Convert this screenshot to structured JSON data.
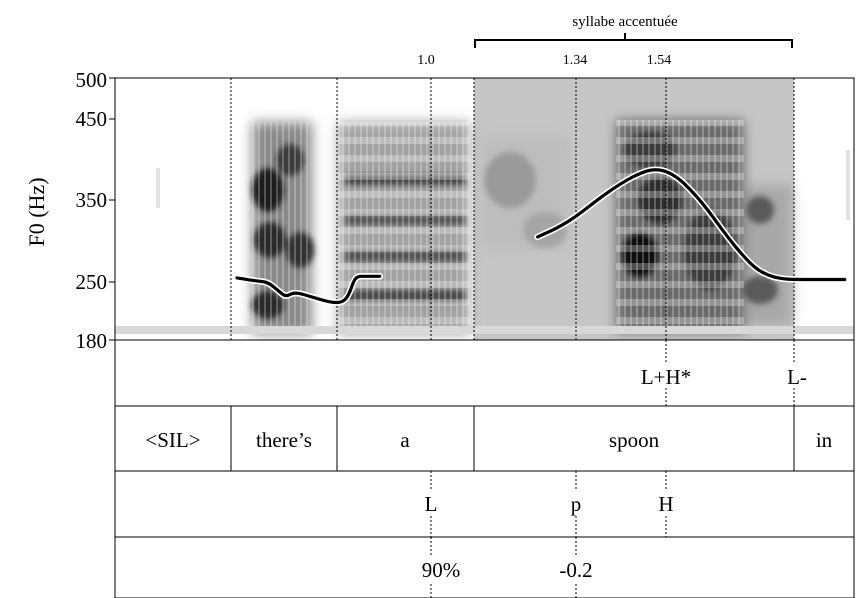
{
  "title": {
    "bracket_label": "syllabe accentuée"
  },
  "y_axis": {
    "label": "F0 (Hz)",
    "ticks": [
      "500",
      "450",
      "350",
      "250",
      "180"
    ]
  },
  "time_markers": [
    "1.0",
    "1.34",
    "1.54"
  ],
  "tiers": {
    "tones": [
      "L+H*",
      "L-"
    ],
    "words": [
      "<SIL>",
      "there’s",
      "a",
      "spoon",
      "in"
    ],
    "targets": [
      "L",
      "p",
      "H"
    ],
    "values": [
      "90%",
      "-0.2"
    ]
  },
  "colors": {
    "stressed_shading": "#c6c6c6",
    "f0_contour": "#000000",
    "contour_halo": "#ffffff",
    "grid": "#000000"
  },
  "chart_data": {
    "type": "line",
    "ylabel": "F0 (Hz)",
    "ylim": [
      180,
      500
    ],
    "series": [
      {
        "x": [
          0.545,
          0.58,
          0.6,
          0.62,
          0.645,
          0.66,
          0.68,
          0.72,
          0.76,
          0.78,
          0.79,
          0.8,
          0.81,
          0.82,
          0.83,
          0.84,
          0.85,
          0.86,
          0.88
        ],
        "values": [
          255,
          252,
          251,
          249,
          238,
          232,
          238,
          232,
          226,
          225,
          226,
          229,
          238,
          253,
          257,
          257,
          257,
          257,
          257
        ]
      },
      {
        "x": [
          1.25,
          1.28,
          1.31,
          1.34,
          1.37,
          1.4,
          1.43,
          1.46,
          1.49,
          1.52,
          1.55,
          1.58,
          1.61,
          1.64,
          1.67,
          1.7,
          1.73,
          1.76,
          1.79,
          1.82,
          1.85,
          1.88,
          1.91,
          1.94,
          1.97
        ],
        "values": [
          305,
          312,
          320,
          330,
          342,
          354,
          365,
          375,
          383,
          388,
          386,
          377,
          362,
          344,
          323,
          302,
          283,
          267,
          258,
          254,
          253,
          253,
          253,
          253,
          253
        ]
      }
    ]
  }
}
